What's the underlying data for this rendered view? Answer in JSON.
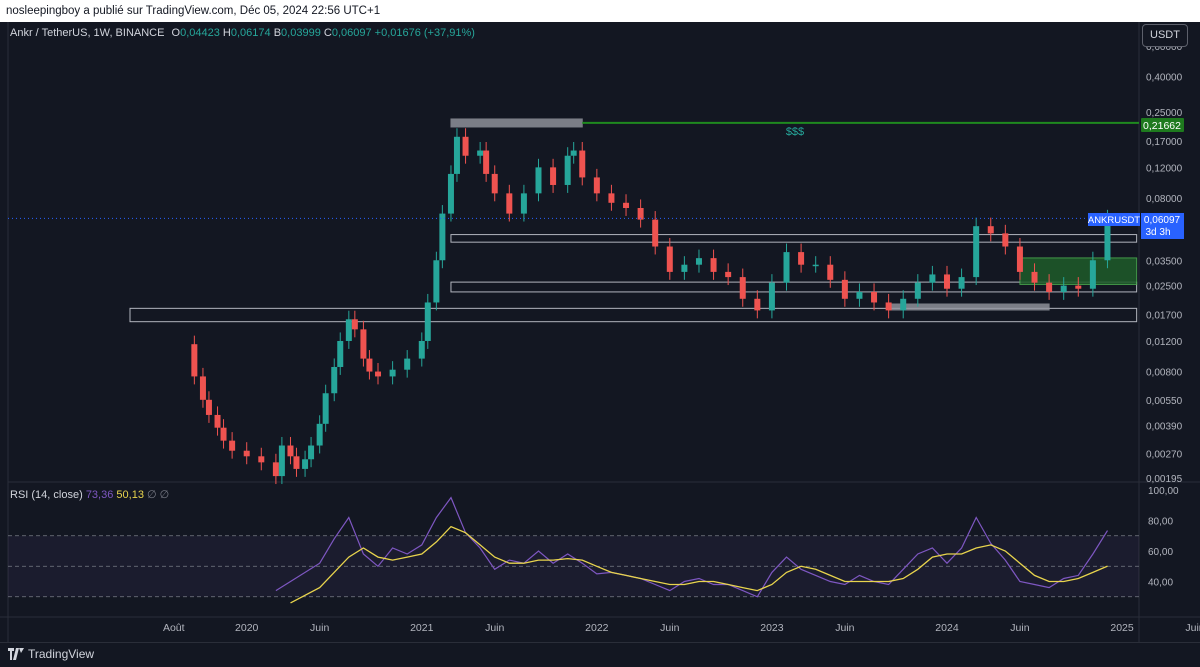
{
  "header": {
    "publisher_line": "nosleepingboy a publié sur TradingView.com, Déc 05, 2024 22:56 UTC+1"
  },
  "legend": {
    "symbol": "Ankr / TetherUS, 1W, BINANCE",
    "open_label": "O",
    "open": "0,04423",
    "high_label": "H",
    "high": "0,06174",
    "low_label": "B",
    "low": "0,03999",
    "close_label": "C",
    "close": "0,06097",
    "change": "+0,01676 (+37,91%)"
  },
  "currency_button": "USDT",
  "price_axis_ticks": [
    "0,60000",
    "0,40000",
    "0,25000",
    "0,17000",
    "0,12000",
    "0,08000",
    "0,05000",
    "0,03500",
    "0,02500",
    "0,01700",
    "0,01200",
    "0,00800",
    "0,00550",
    "0,00390",
    "0,00270",
    "0,00195"
  ],
  "price_labels": {
    "target_level": "0,21662",
    "symbol_tag": "ANKRUSDT",
    "last_price": "0,06097",
    "countdown": "3d 3h"
  },
  "annotation_text": "$$$",
  "time_axis": [
    "Août",
    "2020",
    "Juin",
    "2021",
    "Juin",
    "2022",
    "Juin",
    "2023",
    "Juin",
    "2024",
    "Juin",
    "2025",
    "Juin"
  ],
  "rsi": {
    "legend_label": "RSI (14, close)",
    "value_rsi": "73,36",
    "value_ma": "50,13",
    "extra1": "∅",
    "extra2": "∅",
    "axis_ticks": [
      "100,00",
      "80,00",
      "60,00",
      "40,00"
    ],
    "colors": {
      "rsi": "#7e57c2",
      "ma": "#e8d44d"
    }
  },
  "footer": {
    "brand": "TradingView"
  },
  "colors": {
    "up": "#26a69a",
    "down": "#ef5350",
    "background": "#131722",
    "target_line": "#1f8a1f",
    "rsi_line": "#7e57c2",
    "ma_line": "#e8d44d"
  },
  "chart_data": {
    "type": "candlestick",
    "title": "Ankr / TetherUS, 1W, BINANCE",
    "y_scale": "log",
    "ylim": [
      0.00195,
      0.6
    ],
    "x_range": [
      "2019-05",
      "2025-06"
    ],
    "price_series": [
      [
        "2019-09",
        0.0115
      ],
      [
        "2019-09",
        0.0075
      ],
      [
        "2019-10",
        0.0055
      ],
      [
        "2019-10",
        0.0045
      ],
      [
        "2019-11",
        0.0038
      ],
      [
        "2019-11",
        0.0032
      ],
      [
        "2019-12",
        0.0028
      ],
      [
        "2020-01",
        0.0026
      ],
      [
        "2020-02",
        0.0024
      ],
      [
        "2020-03",
        0.002
      ],
      [
        "2020-03",
        0.003
      ],
      [
        "2020-04",
        0.0026
      ],
      [
        "2020-04",
        0.0022
      ],
      [
        "2020-05",
        0.0025
      ],
      [
        "2020-05",
        0.003
      ],
      [
        "2020-06",
        0.004
      ],
      [
        "2020-06",
        0.006
      ],
      [
        "2020-07",
        0.0085
      ],
      [
        "2020-07",
        0.012
      ],
      [
        "2020-08",
        0.016
      ],
      [
        "2020-08",
        0.014
      ],
      [
        "2020-09",
        0.0095
      ],
      [
        "2020-09",
        0.008
      ],
      [
        "2020-10",
        0.0075
      ],
      [
        "2020-11",
        0.0082
      ],
      [
        "2020-12",
        0.0095
      ],
      [
        "2021-01",
        0.012
      ],
      [
        "2021-01",
        0.02
      ],
      [
        "2021-02",
        0.035
      ],
      [
        "2021-02",
        0.065
      ],
      [
        "2021-03",
        0.11
      ],
      [
        "2021-03",
        0.18
      ],
      [
        "2021-04",
        0.14
      ],
      [
        "2021-05",
        0.15
      ],
      [
        "2021-05",
        0.11
      ],
      [
        "2021-06",
        0.085
      ],
      [
        "2021-07",
        0.065
      ],
      [
        "2021-08",
        0.085
      ],
      [
        "2021-09",
        0.12
      ],
      [
        "2021-10",
        0.095
      ],
      [
        "2021-11",
        0.14
      ],
      [
        "2021-11",
        0.15
      ],
      [
        "2021-12",
        0.105
      ],
      [
        "2022-01",
        0.085
      ],
      [
        "2022-02",
        0.075
      ],
      [
        "2022-03",
        0.07
      ],
      [
        "2022-04",
        0.06
      ],
      [
        "2022-05",
        0.042
      ],
      [
        "2022-06",
        0.03
      ],
      [
        "2022-07",
        0.033
      ],
      [
        "2022-08",
        0.036
      ],
      [
        "2022-09",
        0.03
      ],
      [
        "2022-10",
        0.028
      ],
      [
        "2022-11",
        0.021
      ],
      [
        "2022-12",
        0.018
      ],
      [
        "2023-01",
        0.026
      ],
      [
        "2023-02",
        0.039
      ],
      [
        "2023-03",
        0.033
      ],
      [
        "2023-04",
        0.033
      ],
      [
        "2023-05",
        0.027
      ],
      [
        "2023-06",
        0.021
      ],
      [
        "2023-07",
        0.023
      ],
      [
        "2023-08",
        0.02
      ],
      [
        "2023-09",
        0.018
      ],
      [
        "2023-10",
        0.021
      ],
      [
        "2023-11",
        0.026
      ],
      [
        "2023-12",
        0.029
      ],
      [
        "2024-01",
        0.024
      ],
      [
        "2024-02",
        0.028
      ],
      [
        "2024-03",
        0.055
      ],
      [
        "2024-04",
        0.05
      ],
      [
        "2024-05",
        0.042
      ],
      [
        "2024-06",
        0.03
      ],
      [
        "2024-07",
        0.026
      ],
      [
        "2024-08",
        0.023
      ],
      [
        "2024-09",
        0.025
      ],
      [
        "2024-10",
        0.024
      ],
      [
        "2024-11",
        0.035
      ],
      [
        "2024-12",
        0.061
      ]
    ],
    "levels": {
      "target": 0.21662,
      "last_price": 0.06097
    },
    "zones": [
      {
        "y_low": 0.0155,
        "y_high": 0.0185,
        "x_start": "2019-05",
        "x_end": "2025-02",
        "kind": "outline"
      },
      {
        "y_low": 0.0445,
        "y_high": 0.0492,
        "x_start": "2021-03",
        "x_end": "2025-02",
        "kind": "outline"
      },
      {
        "y_low": 0.023,
        "y_high": 0.0262,
        "x_start": "2021-03",
        "x_end": "2025-02",
        "kind": "outline"
      },
      {
        "y_low": 0.0254,
        "y_high": 0.0361,
        "x_start": "2024-06",
        "x_end": "2025-02",
        "kind": "green"
      },
      {
        "y_low": 0.0181,
        "y_high": 0.0196,
        "x_start": "2023-09",
        "x_end": "2024-08",
        "kind": "grey"
      },
      {
        "y_low": 0.205,
        "y_high": 0.228,
        "x_start": "2021-03",
        "x_end": "2021-12",
        "kind": "grey"
      }
    ],
    "rsi_series": {
      "name": "RSI (14, close)",
      "ylim": [
        20,
        100
      ],
      "bands": [
        70,
        50,
        30
      ],
      "rsi_points": [
        [
          "2020-03",
          34
        ],
        [
          "2020-04",
          40
        ],
        [
          "2020-06",
          52
        ],
        [
          "2020-07",
          68
        ],
        [
          "2020-08",
          82
        ],
        [
          "2020-09",
          58
        ],
        [
          "2020-10",
          50
        ],
        [
          "2020-11",
          62
        ],
        [
          "2020-12",
          58
        ],
        [
          "2021-01",
          64
        ],
        [
          "2021-02",
          82
        ],
        [
          "2021-03",
          95
        ],
        [
          "2021-04",
          72
        ],
        [
          "2021-05",
          62
        ],
        [
          "2021-06",
          48
        ],
        [
          "2021-07",
          54
        ],
        [
          "2021-08",
          52
        ],
        [
          "2021-09",
          60
        ],
        [
          "2021-10",
          52
        ],
        [
          "2021-11",
          58
        ],
        [
          "2021-12",
          52
        ],
        [
          "2022-01",
          45
        ],
        [
          "2022-02",
          46
        ],
        [
          "2022-03",
          44
        ],
        [
          "2022-04",
          42
        ],
        [
          "2022-05",
          38
        ],
        [
          "2022-06",
          34
        ],
        [
          "2022-07",
          40
        ],
        [
          "2022-08",
          42
        ],
        [
          "2022-09",
          38
        ],
        [
          "2022-10",
          38
        ],
        [
          "2022-11",
          34
        ],
        [
          "2022-12",
          30
        ],
        [
          "2023-01",
          46
        ],
        [
          "2023-02",
          56
        ],
        [
          "2023-03",
          48
        ],
        [
          "2023-04",
          44
        ],
        [
          "2023-05",
          40
        ],
        [
          "2023-06",
          38
        ],
        [
          "2023-07",
          44
        ],
        [
          "2023-08",
          40
        ],
        [
          "2023-09",
          38
        ],
        [
          "2023-10",
          48
        ],
        [
          "2023-11",
          58
        ],
        [
          "2023-12",
          62
        ],
        [
          "2024-01",
          52
        ],
        [
          "2024-02",
          62
        ],
        [
          "2024-03",
          82
        ],
        [
          "2024-04",
          65
        ],
        [
          "2024-05",
          54
        ],
        [
          "2024-06",
          40
        ],
        [
          "2024-07",
          38
        ],
        [
          "2024-08",
          36
        ],
        [
          "2024-09",
          42
        ],
        [
          "2024-10",
          44
        ],
        [
          "2024-11",
          58
        ],
        [
          "2024-12",
          73.36
        ]
      ],
      "ma_points": [
        [
          "2020-04",
          26
        ],
        [
          "2020-06",
          36
        ],
        [
          "2020-08",
          56
        ],
        [
          "2020-09",
          62
        ],
        [
          "2020-10",
          56
        ],
        [
          "2020-11",
          54
        ],
        [
          "2020-12",
          56
        ],
        [
          "2021-01",
          58
        ],
        [
          "2021-02",
          66
        ],
        [
          "2021-03",
          76
        ],
        [
          "2021-04",
          72
        ],
        [
          "2021-05",
          64
        ],
        [
          "2021-06",
          56
        ],
        [
          "2021-07",
          52
        ],
        [
          "2021-08",
          52
        ],
        [
          "2021-09",
          54
        ],
        [
          "2021-10",
          54
        ],
        [
          "2021-11",
          55
        ],
        [
          "2021-12",
          54
        ],
        [
          "2022-01",
          50
        ],
        [
          "2022-02",
          46
        ],
        [
          "2022-03",
          44
        ],
        [
          "2022-04",
          42
        ],
        [
          "2022-05",
          40
        ],
        [
          "2022-06",
          38
        ],
        [
          "2022-07",
          38
        ],
        [
          "2022-08",
          40
        ],
        [
          "2022-09",
          40
        ],
        [
          "2022-10",
          38
        ],
        [
          "2022-11",
          36
        ],
        [
          "2022-12",
          34
        ],
        [
          "2023-01",
          38
        ],
        [
          "2023-02",
          46
        ],
        [
          "2023-03",
          50
        ],
        [
          "2023-04",
          48
        ],
        [
          "2023-05",
          44
        ],
        [
          "2023-06",
          40
        ],
        [
          "2023-07",
          40
        ],
        [
          "2023-08",
          40
        ],
        [
          "2023-09",
          40
        ],
        [
          "2023-10",
          42
        ],
        [
          "2023-11",
          48
        ],
        [
          "2023-12",
          56
        ],
        [
          "2024-01",
          58
        ],
        [
          "2024-02",
          58
        ],
        [
          "2024-03",
          62
        ],
        [
          "2024-04",
          64
        ],
        [
          "2024-05",
          60
        ],
        [
          "2024-06",
          52
        ],
        [
          "2024-07",
          44
        ],
        [
          "2024-08",
          40
        ],
        [
          "2024-09",
          40
        ],
        [
          "2024-10",
          42
        ],
        [
          "2024-11",
          46
        ],
        [
          "2024-12",
          50.13
        ]
      ]
    }
  }
}
